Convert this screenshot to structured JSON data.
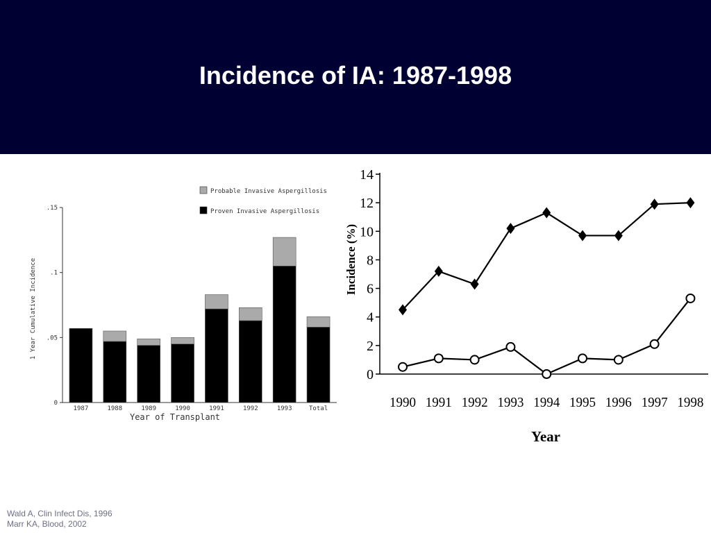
{
  "slide": {
    "title": "Incidence of IA: 1987-1998",
    "title_bar_color": "#000033"
  },
  "citations": [
    "Wald A, Clin Infect Dis, 1996",
    "Marr KA, Blood, 2002"
  ],
  "chart_data": [
    {
      "type": "bar",
      "stacked": true,
      "categories": [
        "1987",
        "1988",
        "1989",
        "1990",
        "1991",
        "1992",
        "1993",
        "Total"
      ],
      "series": [
        {
          "name": "Proven Invasive Aspergillosis",
          "values": [
            0.057,
            0.047,
            0.044,
            0.045,
            0.072,
            0.063,
            0.105,
            0.058
          ],
          "color": "#000000"
        },
        {
          "name": "Probable Invasive Aspergillosis",
          "values": [
            0.0,
            0.008,
            0.005,
            0.005,
            0.011,
            0.01,
            0.022,
            0.008
          ],
          "color": "#aaaaaa"
        }
      ],
      "xlabel": "Year of Transplant",
      "ylabel": "1 Year Cumulative Incidence",
      "yticks": [
        0,
        0.05,
        0.1,
        0.15
      ],
      "ytick_labels": [
        "0",
        ".05",
        ".1",
        ".15"
      ],
      "ylim": [
        0,
        0.15
      ],
      "legend_position": "top-right",
      "grid": false
    },
    {
      "type": "line",
      "x": [
        "1990",
        "1991",
        "1992",
        "1993",
        "1994",
        "1995",
        "1996",
        "1997",
        "1998"
      ],
      "series": [
        {
          "marker": "diamond-filled",
          "values": [
            4.5,
            7.2,
            6.3,
            10.2,
            11.3,
            9.7,
            9.7,
            11.9,
            12.0
          ]
        },
        {
          "marker": "circle-open",
          "values": [
            0.5,
            1.1,
            1.0,
            1.9,
            0.0,
            1.1,
            1.0,
            2.1,
            5.3
          ]
        }
      ],
      "xlabel": "Year",
      "ylabel": "Incidence (%)",
      "yticks": [
        0,
        2,
        4,
        6,
        8,
        10,
        12,
        14
      ],
      "ylim": [
        0,
        14
      ],
      "grid": false
    }
  ]
}
